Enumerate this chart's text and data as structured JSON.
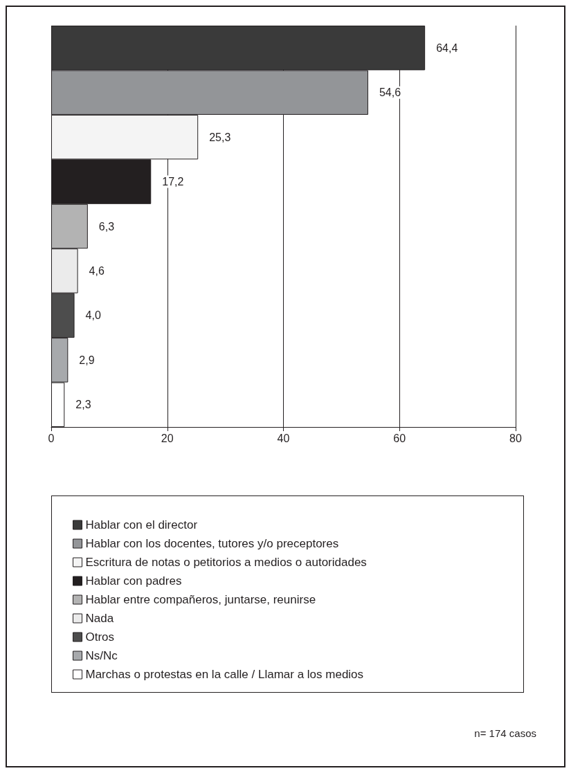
{
  "chart_data": {
    "type": "bar",
    "orientation": "horizontal",
    "categories": [
      null,
      null,
      null,
      null,
      null,
      null,
      null,
      null,
      null
    ],
    "series": [
      {
        "name": "Hablar con el director",
        "color": "#3a3a3a",
        "values": [
          64.4,
          null,
          null,
          null,
          null,
          null,
          null,
          null,
          null
        ],
        "value_labels": [
          "64,4",
          null,
          null,
          null,
          null,
          null,
          null,
          null,
          null
        ]
      },
      {
        "name": "Hablar con los docentes, tutores y/o preceptores",
        "color": "#939598",
        "values": [
          null,
          54.6,
          null,
          null,
          null,
          null,
          null,
          null,
          null
        ],
        "value_labels": [
          null,
          "54,6",
          null,
          null,
          null,
          null,
          null,
          null,
          null
        ]
      },
      {
        "name": "Escritura de notas o petitorios a medios o autoridades",
        "color": "#f4f4f4",
        "values": [
          null,
          null,
          25.3,
          null,
          null,
          null,
          null,
          null,
          null
        ],
        "value_labels": [
          null,
          null,
          "25,3",
          null,
          null,
          null,
          null,
          null,
          null
        ]
      },
      {
        "name": "Hablar con padres",
        "color": "#231f20",
        "values": [
          null,
          null,
          null,
          17.2,
          null,
          null,
          null,
          null,
          null
        ],
        "value_labels": [
          null,
          null,
          null,
          "17,2",
          null,
          null,
          null,
          null,
          null
        ]
      },
      {
        "name": "Hablar entre compañeros, juntarse, reunirse",
        "color": "#b3b3b3",
        "values": [
          null,
          null,
          null,
          null,
          6.3,
          null,
          null,
          null,
          null
        ],
        "value_labels": [
          null,
          null,
          null,
          null,
          "6,3",
          null,
          null,
          null,
          null
        ]
      },
      {
        "name": "Nada",
        "color": "#ebebeb",
        "values": [
          null,
          null,
          null,
          null,
          null,
          4.6,
          null,
          null,
          null
        ],
        "value_labels": [
          null,
          null,
          null,
          null,
          null,
          "4,6",
          null,
          null,
          null
        ]
      },
      {
        "name": "Otros",
        "color": "#4d4d4d",
        "values": [
          null,
          null,
          null,
          null,
          null,
          null,
          4.0,
          null,
          null
        ],
        "value_labels": [
          null,
          null,
          null,
          null,
          null,
          null,
          "4,0",
          null,
          null
        ]
      },
      {
        "name": "Ns/Nc",
        "color": "#a7a9ac",
        "values": [
          null,
          null,
          null,
          null,
          null,
          null,
          null,
          2.9,
          null
        ],
        "value_labels": [
          null,
          null,
          null,
          null,
          null,
          null,
          null,
          "2,9",
          null
        ]
      },
      {
        "name": "Marchas o protestas en la calle / Llamar a los medios",
        "color": "#ffffff",
        "values": [
          null,
          null,
          null,
          null,
          null,
          null,
          null,
          null,
          2.3
        ],
        "value_labels": [
          null,
          null,
          null,
          null,
          null,
          null,
          null,
          null,
          "2,3"
        ]
      }
    ],
    "xlim": [
      0,
      80
    ],
    "xticks": [
      0,
      20,
      40,
      60,
      80
    ],
    "grid": "x",
    "legend": "bottom",
    "annotations": [
      "n= 174 casos"
    ]
  }
}
